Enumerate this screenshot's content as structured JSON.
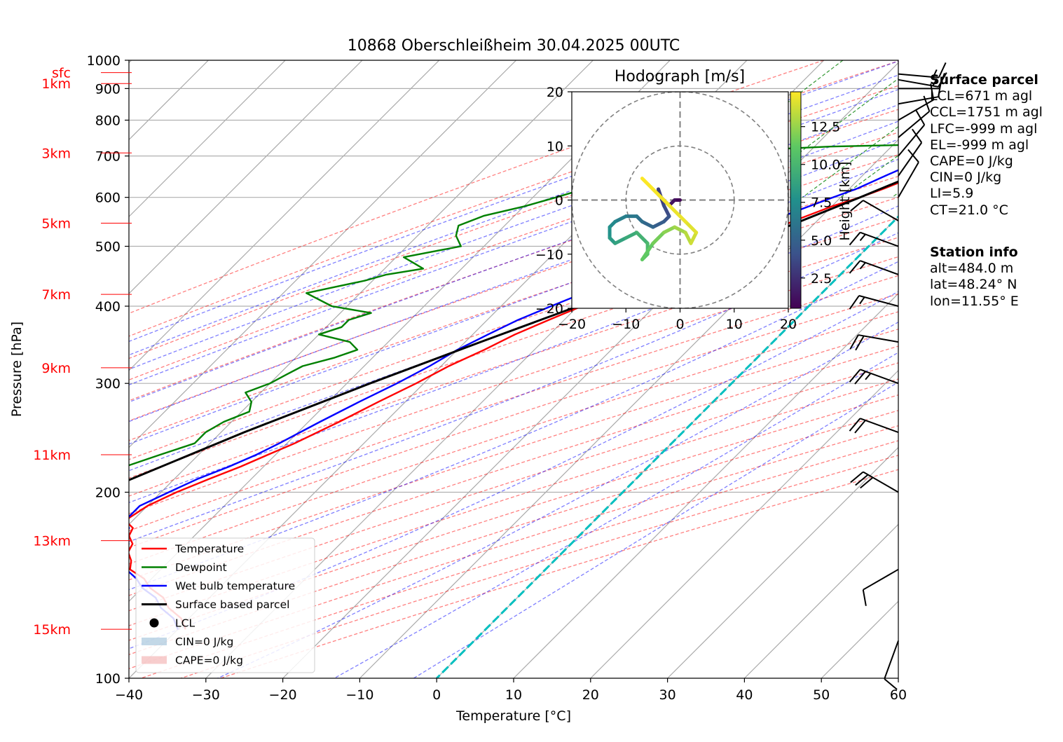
{
  "chart_data": {
    "type": "skew-t",
    "title": "10868 Oberschleißheim 30.04.2025 00UTC",
    "xlabel": "Temperature [°C]",
    "ylabel": "Pressure [hPa]",
    "xlim": [
      -40,
      60
    ],
    "ylim": [
      1000,
      100
    ],
    "x_ticks": [
      "−40",
      "−30",
      "−20",
      "−10",
      "0",
      "10",
      "20",
      "30",
      "40",
      "50",
      "60"
    ],
    "y_ticks": [
      "100",
      "200",
      "300",
      "400",
      "500",
      "600",
      "700",
      "800",
      "900",
      "1000"
    ],
    "height_labels": [
      {
        "label": "sfc",
        "p": 955
      },
      {
        "label": "1km",
        "p": 917
      },
      {
        "label": "3km",
        "p": 708
      },
      {
        "label": "5km",
        "p": 545
      },
      {
        "label": "7km",
        "p": 418
      },
      {
        "label": "9km",
        "p": 318
      },
      {
        "label": "11km",
        "p": 230
      },
      {
        "label": "13km",
        "p": 167
      },
      {
        "label": "15km",
        "p": 120
      }
    ],
    "legend": {
      "placement": "lower-left",
      "entries": [
        {
          "label": "Temperature",
          "color": "#ff0000",
          "kind": "line"
        },
        {
          "label": "Dewpoint",
          "color": "#008000",
          "kind": "line"
        },
        {
          "label": "Wet bulb temperature",
          "color": "#0000ff",
          "kind": "line"
        },
        {
          "label": "Surface based parcel",
          "color": "#000000",
          "kind": "line"
        },
        {
          "label": "LCL",
          "color": "#000000",
          "kind": "dot"
        },
        {
          "label": "CIN=0 J/kg",
          "color": "#aac8dd",
          "kind": "patch"
        },
        {
          "label": "CAPE=0 J/kg",
          "color": "#f4b8b8",
          "kind": "patch"
        }
      ]
    },
    "series": [
      {
        "name": "Temperature",
        "color": "#ff0000",
        "points": [
          [
            955,
            9.5
          ],
          [
            958,
            13
          ],
          [
            960,
            16
          ],
          [
            962,
            19.5
          ],
          [
            950,
            20
          ],
          [
            930,
            18
          ],
          [
            900,
            15
          ],
          [
            860,
            11
          ],
          [
            830,
            8
          ],
          [
            800,
            5.5
          ],
          [
            780,
            3
          ],
          [
            760,
            0
          ],
          [
            740,
            -1
          ],
          [
            730,
            1.5
          ],
          [
            720,
            4
          ],
          [
            700,
            0.5
          ],
          [
            680,
            -1
          ],
          [
            650,
            -3
          ],
          [
            620,
            -5.5
          ],
          [
            600,
            -7.5
          ],
          [
            580,
            -10
          ],
          [
            550,
            -13
          ],
          [
            520,
            -15.5
          ],
          [
            500,
            -17.5
          ],
          [
            480,
            -20
          ],
          [
            460,
            -22.5
          ],
          [
            440,
            -25
          ],
          [
            420,
            -27
          ],
          [
            400,
            -29.5
          ],
          [
            380,
            -32
          ],
          [
            360,
            -34.5
          ],
          [
            340,
            -36.5
          ],
          [
            320,
            -39
          ],
          [
            300,
            -41
          ],
          [
            280,
            -43.5
          ],
          [
            260,
            -46
          ],
          [
            240,
            -49
          ],
          [
            230,
            -51
          ],
          [
            220,
            -53
          ],
          [
            210,
            -55.5
          ],
          [
            200,
            -58
          ],
          [
            190,
            -60
          ],
          [
            180,
            -61
          ],
          [
            175,
            -59
          ],
          [
            170,
            -58.5
          ],
          [
            165,
            -57
          ],
          [
            160,
            -56.5
          ],
          [
            155,
            -55
          ],
          [
            150,
            -54
          ],
          [
            145,
            -51
          ],
          [
            140,
            -49
          ],
          [
            135,
            -46
          ],
          [
            130,
            -44
          ],
          [
            125,
            -41
          ],
          [
            120,
            -39
          ]
        ]
      },
      {
        "name": "Dewpoint",
        "color": "#008000",
        "points": [
          [
            955,
            8
          ],
          [
            945,
            7
          ],
          [
            935,
            8
          ],
          [
            920,
            6
          ],
          [
            900,
            4
          ],
          [
            870,
            2.5
          ],
          [
            840,
            3
          ],
          [
            800,
            3.5
          ],
          [
            760,
            4
          ],
          [
            735,
            4
          ],
          [
            725,
            -18
          ],
          [
            715,
            -28
          ],
          [
            710,
            -33
          ],
          [
            700,
            -33
          ],
          [
            690,
            -35
          ],
          [
            670,
            -38
          ],
          [
            650,
            -40
          ],
          [
            630,
            -43
          ],
          [
            600,
            -47
          ],
          [
            580,
            -50
          ],
          [
            560,
            -54
          ],
          [
            540,
            -56
          ],
          [
            520,
            -55
          ],
          [
            500,
            -53
          ],
          [
            490,
            -56
          ],
          [
            480,
            -59
          ],
          [
            470,
            -57
          ],
          [
            460,
            -55
          ],
          [
            450,
            -59
          ],
          [
            440,
            -61
          ],
          [
            430,
            -64
          ],
          [
            420,
            -67
          ],
          [
            400,
            -62
          ],
          [
            390,
            -56
          ],
          [
            380,
            -58
          ],
          [
            370,
            -58
          ],
          [
            360,
            -60
          ],
          [
            350,
            -55
          ],
          [
            340,
            -53
          ],
          [
            330,
            -55
          ],
          [
            320,
            -58
          ],
          [
            310,
            -59
          ],
          [
            300,
            -60
          ],
          [
            290,
            -62
          ],
          [
            280,
            -60
          ],
          [
            270,
            -59
          ],
          [
            260,
            -61
          ],
          [
            250,
            -62
          ],
          [
            240,
            -62
          ],
          [
            230,
            -65
          ],
          [
            220,
            -68
          ],
          [
            210,
            -68
          ],
          [
            200,
            -70
          ],
          [
            190,
            -71
          ],
          [
            180,
            -71
          ],
          [
            175,
            -76
          ],
          [
            170,
            -80
          ],
          [
            165,
            -80
          ],
          [
            160,
            -75
          ],
          [
            155,
            -76
          ],
          [
            150,
            -78
          ],
          [
            145,
            -78
          ],
          [
            140,
            -77
          ],
          [
            135,
            -76
          ],
          [
            130,
            -74
          ],
          [
            125,
            -73
          ],
          [
            120,
            -70
          ],
          [
            117,
            -68
          ]
        ]
      },
      {
        "name": "Wet bulb temperature",
        "color": "#0000ff",
        "points": [
          [
            955,
            10
          ],
          [
            940,
            12
          ],
          [
            920,
            10.5
          ],
          [
            900,
            9
          ],
          [
            880,
            8
          ],
          [
            850,
            6
          ],
          [
            820,
            4.5
          ],
          [
            800,
            3
          ],
          [
            770,
            1
          ],
          [
            750,
            -0.5
          ],
          [
            730,
            -2
          ],
          [
            700,
            -3.5
          ],
          [
            680,
            -5
          ],
          [
            650,
            -7
          ],
          [
            620,
            -9
          ],
          [
            600,
            -11
          ],
          [
            580,
            -13
          ],
          [
            560,
            -15
          ],
          [
            540,
            -17.5
          ],
          [
            520,
            -20
          ],
          [
            500,
            -22
          ],
          [
            480,
            -24
          ],
          [
            460,
            -26.5
          ],
          [
            440,
            -29
          ],
          [
            420,
            -31
          ],
          [
            400,
            -33.5
          ],
          [
            380,
            -36
          ],
          [
            360,
            -38
          ],
          [
            340,
            -40
          ],
          [
            320,
            -41.5
          ],
          [
            300,
            -43.5
          ],
          [
            280,
            -46
          ],
          [
            260,
            -48.5
          ],
          [
            240,
            -51
          ],
          [
            230,
            -52.5
          ],
          [
            220,
            -54.5
          ],
          [
            210,
            -57
          ],
          [
            200,
            -59
          ],
          [
            190,
            -61
          ],
          [
            180,
            -61
          ],
          [
            175,
            -59.5
          ],
          [
            170,
            -59
          ],
          [
            165,
            -57.5
          ],
          [
            160,
            -57
          ],
          [
            155,
            -55.5
          ],
          [
            150,
            -54.5
          ],
          [
            145,
            -52
          ],
          [
            140,
            -50
          ],
          [
            135,
            -47
          ],
          [
            130,
            -45
          ],
          [
            125,
            -42
          ],
          [
            120,
            -40
          ]
        ]
      },
      {
        "name": "Surface based parcel",
        "color": "#000000",
        "points": [
          [
            955,
            13
          ],
          [
            930,
            11
          ],
          [
            905,
            9.2
          ],
          [
            850,
            7
          ],
          [
            800,
            5
          ],
          [
            750,
            3
          ],
          [
            700,
            0
          ],
          [
            650,
            -3.5
          ],
          [
            600,
            -7.5
          ],
          [
            550,
            -12
          ],
          [
            500,
            -17
          ],
          [
            450,
            -23
          ],
          [
            400,
            -30
          ],
          [
            350,
            -38
          ],
          [
            300,
            -47
          ],
          [
            250,
            -57
          ],
          [
            200,
            -68
          ],
          [
            150,
            -82
          ],
          [
            135,
            -88
          ]
        ]
      }
    ],
    "lcl": {
      "label": "LCL",
      "p": 905,
      "t": 9.2
    },
    "wind_barbs_kt": [
      {
        "p": 950,
        "dir": 95,
        "spd": 15
      },
      {
        "p": 930,
        "dir": 100,
        "spd": 15
      },
      {
        "p": 900,
        "dir": 90,
        "spd": 10
      },
      {
        "p": 850,
        "dir": 80,
        "spd": 10
      },
      {
        "p": 800,
        "dir": 60,
        "spd": 10
      },
      {
        "p": 750,
        "dir": 50,
        "spd": 10
      },
      {
        "p": 700,
        "dir": 40,
        "spd": 10
      },
      {
        "p": 650,
        "dir": 35,
        "spd": 10
      },
      {
        "p": 600,
        "dir": 30,
        "spd": 10
      },
      {
        "p": 550,
        "dir": 300,
        "spd": 10
      },
      {
        "p": 500,
        "dir": 290,
        "spd": 15
      },
      {
        "p": 450,
        "dir": 290,
        "spd": 15
      },
      {
        "p": 400,
        "dir": 285,
        "spd": 15
      },
      {
        "p": 350,
        "dir": 280,
        "spd": 20
      },
      {
        "p": 300,
        "dir": 290,
        "spd": 25
      },
      {
        "p": 250,
        "dir": 290,
        "spd": 20
      },
      {
        "p": 200,
        "dir": 300,
        "spd": 30
      },
      {
        "p": 150,
        "dir": 240,
        "spd": 10
      },
      {
        "p": 115,
        "dir": 200,
        "spd": 10
      }
    ],
    "hodograph": {
      "title": "Hodograph [m/s]",
      "xlim": [
        -20,
        20
      ],
      "ylim": [
        -20,
        20
      ],
      "x_ticks": [
        "−20",
        "−10",
        "0",
        "10",
        "20"
      ],
      "y_ticks": [
        "20",
        "10",
        "0",
        "−10",
        "−20"
      ],
      "colorbar": {
        "label": "Height [km]",
        "ticks": [
          "2.5",
          "5.0",
          "7.5",
          "10.0",
          "12.5"
        ],
        "range": [
          0.5,
          14.8
        ]
      },
      "points": [
        [
          0,
          0,
          0.5
        ],
        [
          -1,
          0,
          1
        ],
        [
          -2,
          -1,
          1.5
        ],
        [
          -3,
          0,
          2
        ],
        [
          -4,
          1,
          2.5
        ],
        [
          -4,
          2,
          3
        ],
        [
          -3,
          -1,
          3.5
        ],
        [
          -2,
          -3,
          4
        ],
        [
          -3,
          -4,
          4.5
        ],
        [
          -5,
          -5,
          5
        ],
        [
          -7,
          -4,
          5.5
        ],
        [
          -8,
          -3,
          6
        ],
        [
          -10,
          -3,
          6.5
        ],
        [
          -12,
          -4,
          7
        ],
        [
          -13,
          -5,
          7.5
        ],
        [
          -13,
          -7,
          8
        ],
        [
          -12,
          -8,
          8.5
        ],
        [
          -10,
          -7,
          9
        ],
        [
          -8,
          -6,
          9.5
        ],
        [
          -6,
          -8,
          10
        ],
        [
          -6,
          -10,
          10.5
        ],
        [
          -7,
          -11,
          11
        ],
        [
          -5,
          -8,
          11.5
        ],
        [
          -3,
          -6,
          12
        ],
        [
          -1,
          -5,
          12.5
        ],
        [
          1,
          -6,
          13
        ],
        [
          2,
          -8,
          13.5
        ],
        [
          3,
          -6,
          14
        ],
        [
          1,
          -4,
          14.3
        ],
        [
          -2,
          -1,
          14.5
        ],
        [
          -5,
          2,
          14.7
        ],
        [
          -7,
          4,
          14.8
        ]
      ]
    }
  },
  "info": {
    "surface_header": "Surface parcel",
    "surface_lines": [
      "LCL=671 m agl",
      "CCL=1751 m agl",
      "LFC=-999 m agl",
      "EL=-999 m agl",
      "CAPE=0 J/kg",
      "CIN=0 J/kg",
      "LI=5.9",
      "CT=21.0 °C"
    ],
    "station_header": "Station info",
    "station_lines": [
      "alt=484.0 m",
      "lat=48.24° N",
      "lon=11.55° E"
    ]
  }
}
